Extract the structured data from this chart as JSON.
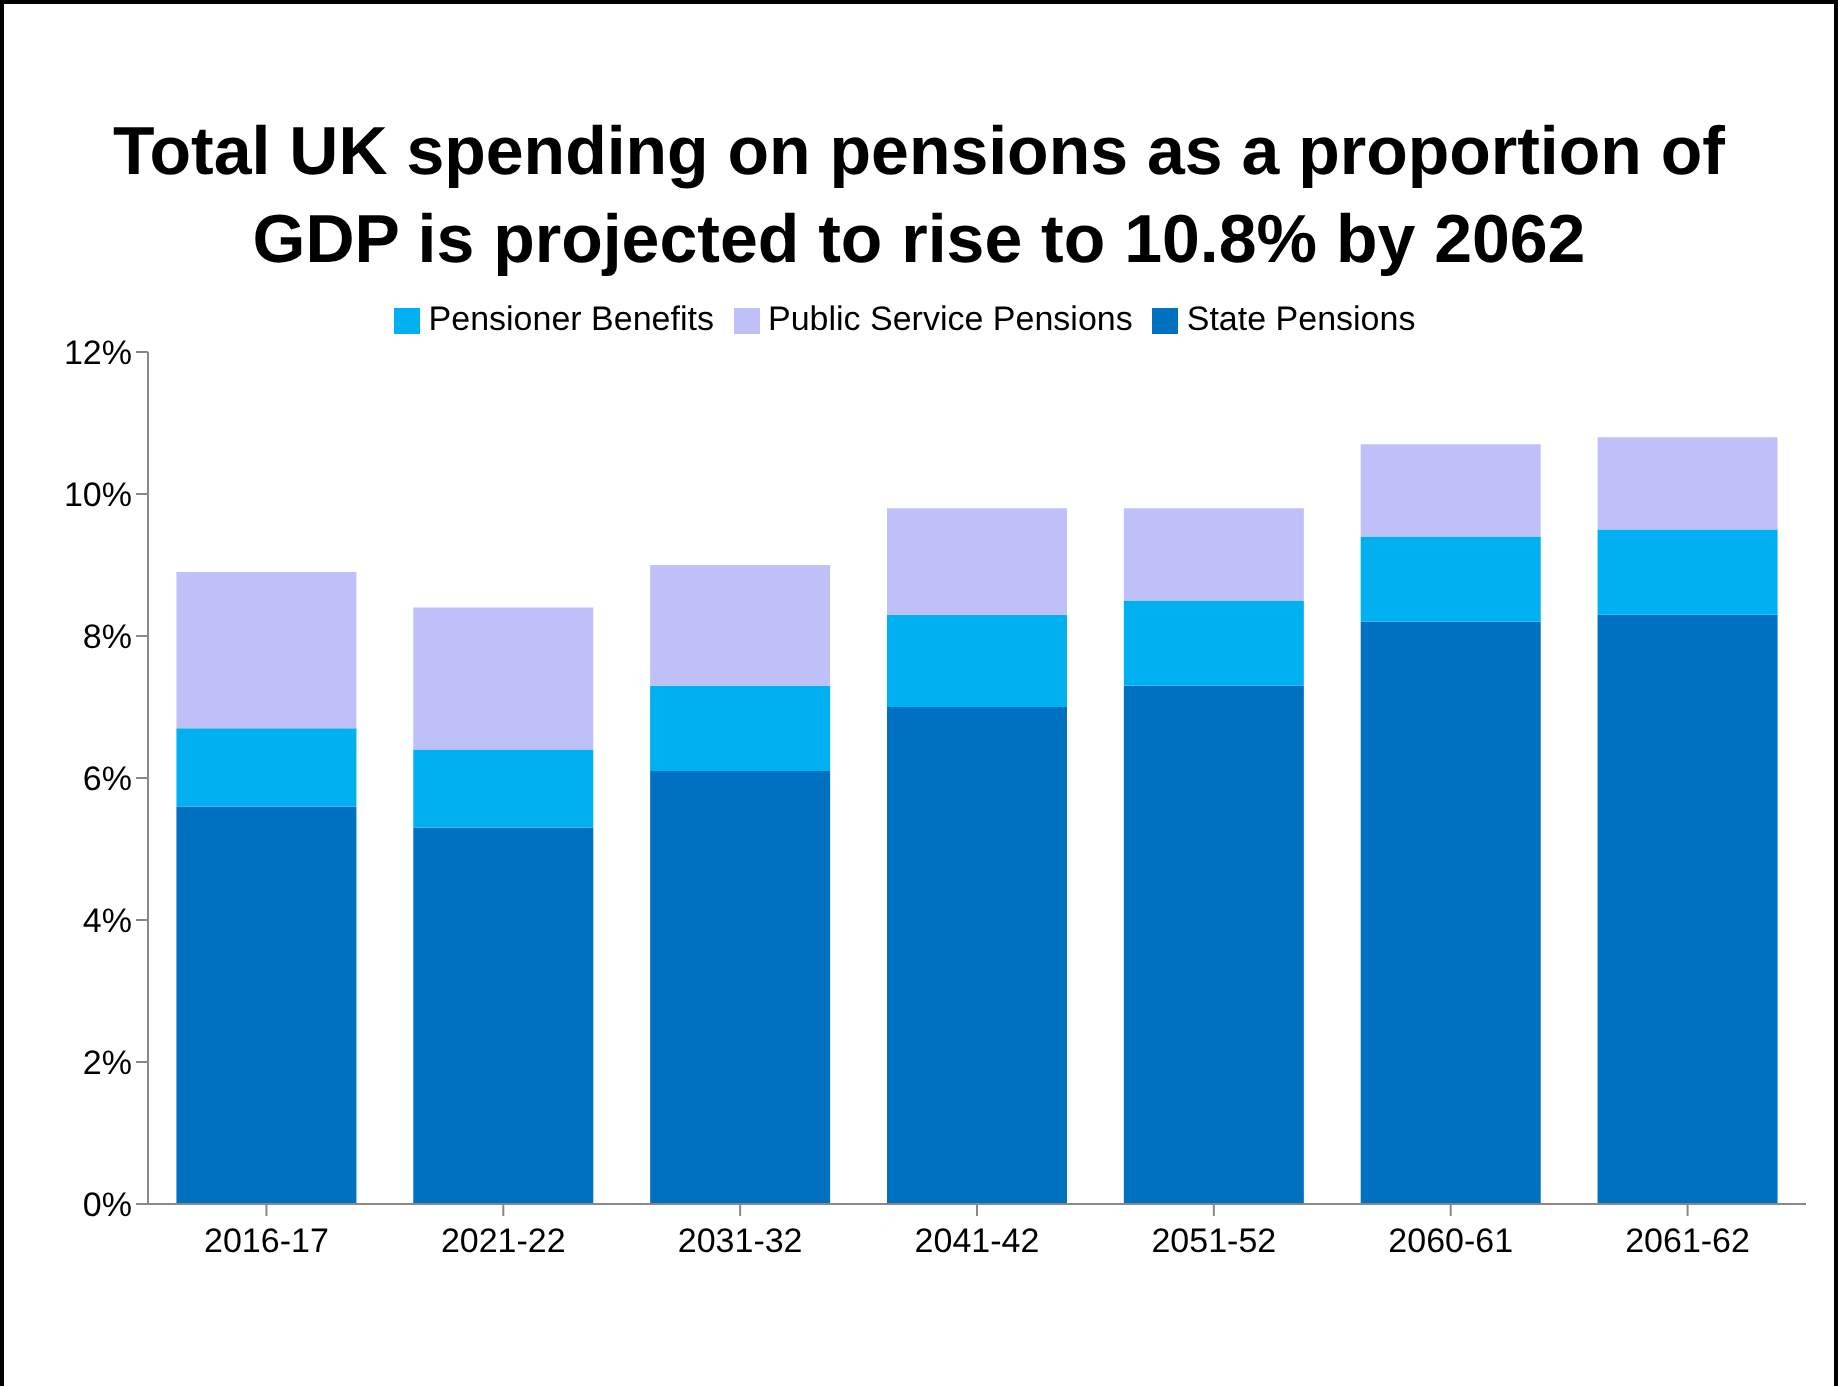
{
  "chart_data": {
    "type": "bar",
    "title": "Total UK spending on pensions as a proportion of GDP is projected to rise to 10.8% by 2062",
    "categories": [
      "2016-17",
      "2021-22",
      "2031-32",
      "2041-42",
      "2051-52",
      "2060-61",
      "2061-62"
    ],
    "stacked": true,
    "series": [
      {
        "name": "State Pensions",
        "color": "#0070c0",
        "values": [
          5.6,
          5.3,
          6.1,
          7.0,
          7.3,
          8.2,
          8.3
        ]
      },
      {
        "name": "Pensioner Benefits",
        "color": "#00b0f0",
        "values": [
          1.1,
          1.1,
          1.2,
          1.3,
          1.2,
          1.2,
          1.2
        ]
      },
      {
        "name": "Public Service Pensions",
        "color": "#c0c0f8",
        "values": [
          2.2,
          2.0,
          1.7,
          1.5,
          1.3,
          1.3,
          1.3
        ]
      }
    ],
    "ylim": [
      0,
      12
    ],
    "yticks": [
      {
        "value": 0,
        "label": "0%"
      },
      {
        "value": 2,
        "label": "2%"
      },
      {
        "value": 4,
        "label": "4%"
      },
      {
        "value": 6,
        "label": "6%"
      },
      {
        "value": 8,
        "label": "8%"
      },
      {
        "value": 10,
        "label": "10%"
      },
      {
        "value": 12,
        "label": "12%"
      }
    ],
    "grid": false,
    "legend": "top"
  }
}
